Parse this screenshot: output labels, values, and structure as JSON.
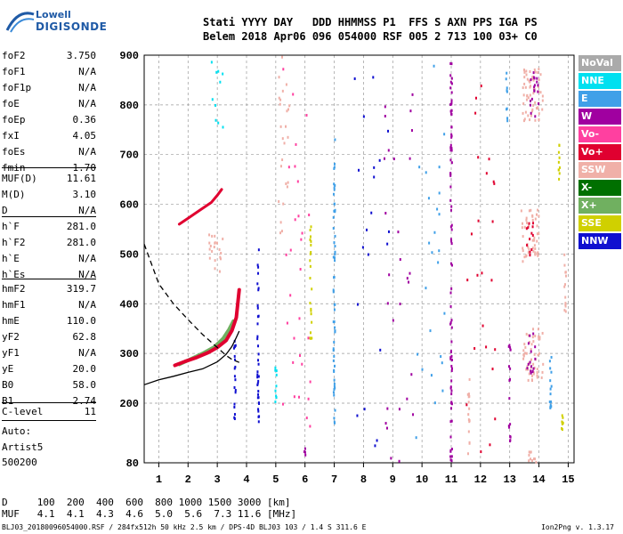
{
  "logo": {
    "line1": "Lowell",
    "line2": "DIGISONDE"
  },
  "header": {
    "row1": "Stati YYYY DAY   DDD HHMMSS P1  FFS S AXN PPS IGA PS",
    "row2": "Belem 2018 Apr06 096 054000 RSF 005 2 713 100 03+ C0"
  },
  "params": [
    {
      "name": "foF2",
      "value": "3.750"
    },
    {
      "name": "foF1",
      "value": "N/A"
    },
    {
      "name": "foF1p",
      "value": "N/A"
    },
    {
      "name": "foE",
      "value": "N/A"
    },
    {
      "name": "foEp",
      "value": "0.36"
    },
    {
      "name": "fxI",
      "value": "4.05"
    },
    {
      "name": "foEs",
      "value": "N/A"
    },
    {
      "name": "fmin",
      "value": "1.70"
    },
    {
      "name": "MUF(D)",
      "value": "11.61"
    },
    {
      "name": "M(D)",
      "value": "3.10"
    },
    {
      "name": "D",
      "value": "N/A"
    },
    {
      "name": "h`F",
      "value": "281.0"
    },
    {
      "name": "h`F2",
      "value": "281.0"
    },
    {
      "name": "h`E",
      "value": "N/A"
    },
    {
      "name": "h`Es",
      "value": "N/A"
    },
    {
      "name": "hmF2",
      "value": "319.7"
    },
    {
      "name": "hmF1",
      "value": "N/A"
    },
    {
      "name": "hmE",
      "value": "110.0"
    },
    {
      "name": "yF2",
      "value": "62.8"
    },
    {
      "name": "yF1",
      "value": "N/A"
    },
    {
      "name": "yE",
      "value": "20.0"
    },
    {
      "name": "B0",
      "value": "58.0"
    },
    {
      "name": "B1",
      "value": "2.74"
    },
    {
      "name": "C-level",
      "value": "11"
    }
  ],
  "auto": {
    "line1": "Auto:",
    "line2": "Artist5",
    "line3": "500200"
  },
  "legend": [
    {
      "label": "NoVal",
      "color": "#aaaaaa"
    },
    {
      "label": "NNE",
      "color": "#00e0f0"
    },
    {
      "label": "E",
      "color": "#40a0e8"
    },
    {
      "label": "W",
      "color": "#a000a0"
    },
    {
      "label": "Vo-",
      "color": "#ff40a0"
    },
    {
      "label": "Vo+",
      "color": "#e00030"
    },
    {
      "label": "SSW",
      "color": "#f0b0a8"
    },
    {
      "label": "X-",
      "color": "#007000"
    },
    {
      "label": "X+",
      "color": "#70b060"
    },
    {
      "label": "SSE",
      "color": "#d0d000"
    },
    {
      "label": "NNW",
      "color": "#1010d0"
    }
  ],
  "bottom": {
    "dist_row": "D     100  200  400  600  800 1000 1500 3000 [km]",
    "muf_row": "MUF   4.1  4.1  4.3  4.6  5.0  5.6  7.3 11.6 [MHz]",
    "footer_left": "BLJ03_20180096054000.RSF / 284fx512h 50 kHz 2.5 km / DPS-4D BLJ03 103 / 1.4 S 311.6 E",
    "footer_right": "Ion2Png v. 1.3.17"
  },
  "chart_data": {
    "type": "scatter",
    "x_ticks": [
      "1",
      "2",
      "3",
      "4",
      "5",
      "6",
      "7",
      "8",
      "9",
      "10",
      "11",
      "12",
      "13",
      "14",
      "15"
    ],
    "y_ticks": [
      "80",
      "200",
      "300",
      "400",
      "500",
      "600",
      "700",
      "800",
      "900"
    ],
    "xlim": [
      0.5,
      15.2
    ],
    "ylim": [
      80,
      900
    ],
    "grid": true,
    "legend_position": "right",
    "traces": {
      "o_trace": {
        "freq": [
          1.55,
          1.9,
          2.3,
          2.7,
          3.0,
          3.3,
          3.5,
          3.65,
          3.75
        ],
        "height": [
          276,
          284,
          292,
          302,
          312,
          326,
          346,
          372,
          428
        ]
      },
      "x_trace": {
        "freq": [
          1.7,
          2.1,
          2.5,
          2.9,
          3.2,
          3.4,
          3.55
        ],
        "height": [
          278,
          289,
          300,
          313,
          330,
          348,
          365
        ]
      },
      "second_hop": {
        "freq": [
          1.7,
          2.0,
          2.4,
          2.8,
          3.0,
          3.15
        ],
        "height": [
          560,
          572,
          588,
          604,
          618,
          630
        ]
      },
      "profile_solid": {
        "freq": [
          0.5,
          1.0,
          1.5,
          2.0,
          2.5,
          3.0,
          3.3,
          3.5,
          3.65,
          3.75
        ],
        "height": [
          237,
          247,
          254,
          262,
          269,
          283,
          298,
          314,
          332,
          345
        ]
      },
      "profile_dashed": {
        "freq": [
          0.5,
          1.0,
          1.5,
          2.0,
          2.5,
          3.0,
          3.3,
          3.5,
          3.75
        ],
        "height": [
          520,
          440,
          400,
          368,
          338,
          312,
          296,
          288,
          282
        ]
      }
    },
    "scatter_columns": [
      {
        "f": 4.4,
        "h0": 155,
        "h1": 520,
        "color": "#1010d0"
      },
      {
        "f": 3.6,
        "h0": 165,
        "h1": 330,
        "color": "#1010d0"
      },
      {
        "f": 5.0,
        "h0": 200,
        "h1": 290,
        "color": "#00e0f0"
      },
      {
        "f": 6.0,
        "h0": 80,
        "h1": 120,
        "color": "#a000a0"
      },
      {
        "f": 6.2,
        "h0": 330,
        "h1": 560,
        "color": "#d0d000"
      },
      {
        "f": 7.0,
        "h0": 160,
        "h1": 750,
        "color": "#40a0e8"
      },
      {
        "f": 11.0,
        "h0": 80,
        "h1": 900,
        "color": "#a000a0"
      },
      {
        "f": 11.6,
        "h0": 90,
        "h1": 250,
        "color": "#f0b0a8"
      },
      {
        "f": 12.9,
        "h0": 760,
        "h1": 880,
        "color": "#40a0e8"
      },
      {
        "f": 13.0,
        "h0": 120,
        "h1": 320,
        "color": "#a000a0"
      },
      {
        "f": 14.4,
        "h0": 190,
        "h1": 300,
        "color": "#40a0e8"
      },
      {
        "f": 14.7,
        "h0": 640,
        "h1": 720,
        "color": "#d0d000"
      },
      {
        "f": 14.8,
        "h0": 140,
        "h1": 200,
        "color": "#d0d000"
      },
      {
        "f": 14.9,
        "h0": 380,
        "h1": 500,
        "color": "#f0b0a8"
      }
    ],
    "scatter_blobs": [
      {
        "f": 13.8,
        "h": 820,
        "spread_f": 0.35,
        "spread_h": 55,
        "n": 60,
        "color": "#f0b0a8"
      },
      {
        "f": 13.85,
        "h": 820,
        "spread_f": 0.15,
        "spread_h": 45,
        "n": 18,
        "color": "#a000a0"
      },
      {
        "f": 13.7,
        "h": 540,
        "spread_f": 0.3,
        "spread_h": 55,
        "n": 45,
        "color": "#f0b0a8"
      },
      {
        "f": 13.7,
        "h": 530,
        "spread_f": 0.12,
        "spread_h": 35,
        "n": 12,
        "color": "#e00030"
      },
      {
        "f": 13.8,
        "h": 300,
        "spread_f": 0.35,
        "spread_h": 55,
        "n": 50,
        "color": "#f0b0a8"
      },
      {
        "f": 13.75,
        "h": 300,
        "spread_f": 0.15,
        "spread_h": 40,
        "n": 15,
        "color": "#a000a0"
      },
      {
        "f": 13.8,
        "h": 90,
        "spread_f": 0.15,
        "spread_h": 12,
        "n": 10,
        "color": "#f0b0a8"
      },
      {
        "f": 5.3,
        "h": 720,
        "spread_f": 0.2,
        "spread_h": 180,
        "n": 25,
        "color": "#f0b0a8"
      },
      {
        "f": 2.9,
        "h": 500,
        "spread_f": 0.3,
        "spread_h": 40,
        "n": 20,
        "color": "#f0b0a8"
      },
      {
        "f": 3.0,
        "h": 820,
        "spread_f": 0.2,
        "spread_h": 70,
        "n": 10,
        "color": "#00e0f0"
      },
      {
        "f": 9.2,
        "h": 450,
        "spread_f": 0.5,
        "spread_h": 400,
        "n": 30,
        "color": "#a000a0"
      },
      {
        "f": 10.3,
        "h": 500,
        "spread_f": 0.5,
        "spread_h": 380,
        "n": 25,
        "color": "#40a0e8"
      },
      {
        "f": 12.0,
        "h": 450,
        "spread_f": 0.5,
        "spread_h": 400,
        "n": 25,
        "color": "#e00030"
      },
      {
        "f": 5.7,
        "h": 500,
        "spread_f": 0.5,
        "spread_h": 400,
        "n": 30,
        "color": "#ff40a0"
      },
      {
        "f": 8.3,
        "h": 500,
        "spread_f": 0.6,
        "spread_h": 400,
        "n": 20,
        "color": "#1010d0"
      }
    ]
  }
}
